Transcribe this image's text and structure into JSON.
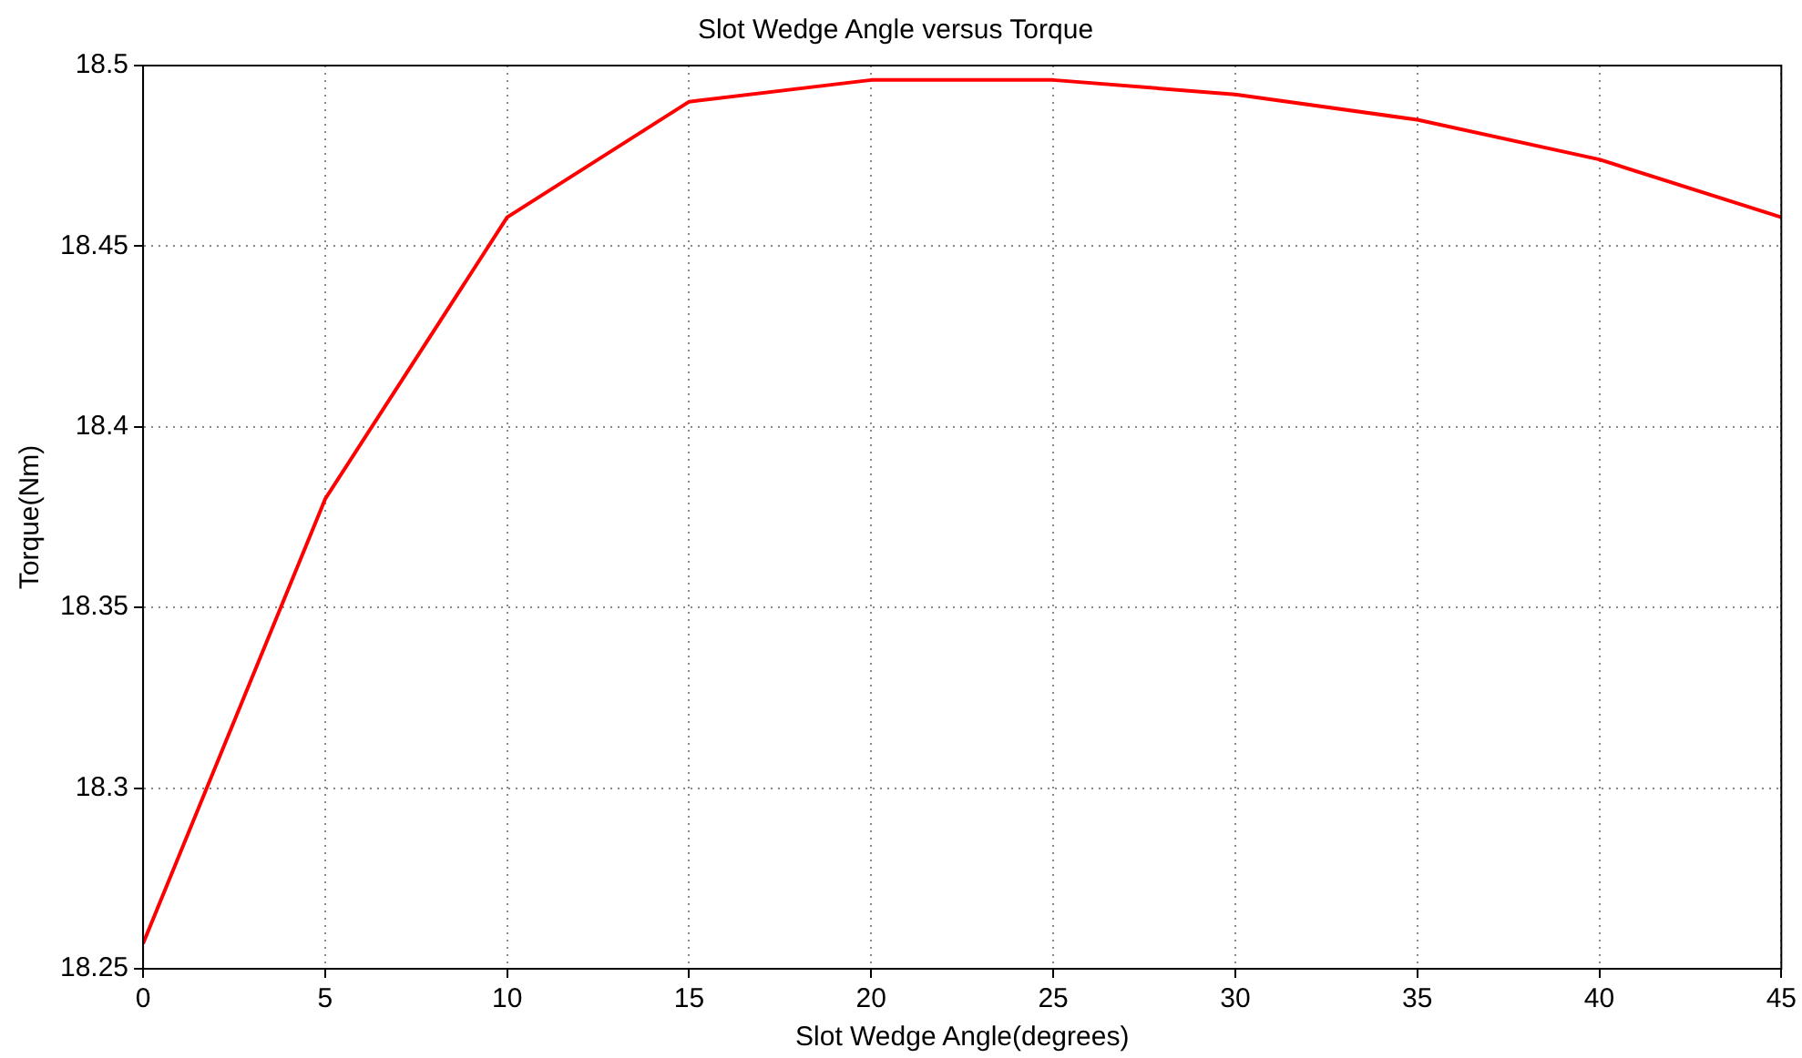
{
  "chart_data": {
    "type": "line",
    "title": "Slot Wedge Angle versus Torque",
    "xlabel": "Slot Wedge Angle(degrees)",
    "ylabel": "Torque(Nm)",
    "x": [
      0,
      5,
      10,
      15,
      20,
      25,
      30,
      35,
      40,
      45
    ],
    "series": [
      {
        "color": "#ff0000",
        "values": [
          18.257,
          18.38,
          18.458,
          18.49,
          18.496,
          18.496,
          18.492,
          18.485,
          18.474,
          18.458
        ]
      }
    ],
    "xlim": [
      0,
      45
    ],
    "xticks": [
      0,
      5,
      10,
      15,
      20,
      25,
      30,
      35,
      40,
      45
    ],
    "ylim": [
      18.25,
      18.5
    ],
    "yticks": [
      18.25,
      18.3,
      18.35,
      18.4,
      18.45,
      18.5
    ],
    "grid": true,
    "legend": false,
    "marker": "none",
    "line_style": "solid"
  }
}
